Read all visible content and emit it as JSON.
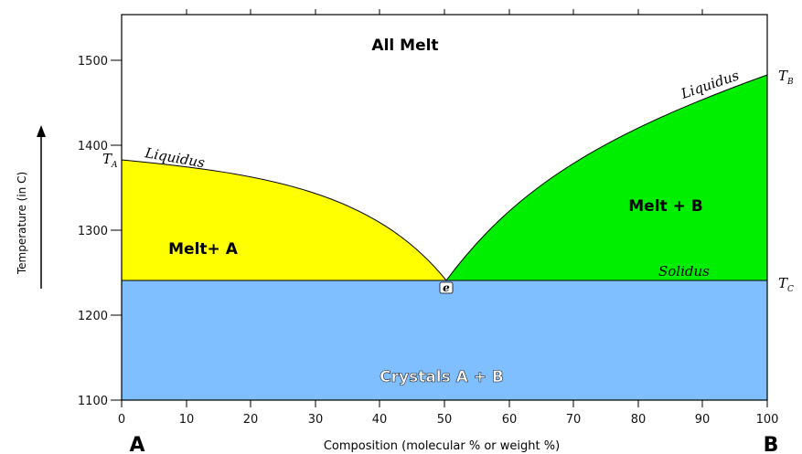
{
  "diagram": {
    "x_axis": {
      "ticks": [
        "0",
        "10",
        "20",
        "30",
        "40",
        "50",
        "60",
        "70",
        "80",
        "90",
        "100"
      ],
      "title": "Composition  (molecular % or weight %)",
      "end_left": "A",
      "end_right": "B"
    },
    "y_axis": {
      "ticks": [
        "1100",
        "1200",
        "1300",
        "1400",
        "1500"
      ],
      "title": "Temperature  (in C)"
    },
    "regions": {
      "all_melt": "All Melt",
      "melt_a": "Melt+ A",
      "melt_b": "Melt + B",
      "crystals": "Crystals A + B"
    },
    "curve_labels": {
      "liquidus_left": "Liquidus",
      "liquidus_right": "Liquidus",
      "solidus": "Solidus",
      "eutectic": "e"
    },
    "temperature_labels": {
      "ta": "T",
      "ta_sub": "A",
      "tb": "T",
      "tb_sub": "B",
      "tc": "T",
      "tc_sub": "C"
    },
    "key_values": {
      "t_a": 1383,
      "t_b": 1483,
      "t_c_solidus": 1242,
      "eutectic_composition": 50
    },
    "colors": {
      "melt_a": "#ffff00",
      "melt_b": "#00ee00",
      "crystals": "#7fbfff"
    }
  }
}
